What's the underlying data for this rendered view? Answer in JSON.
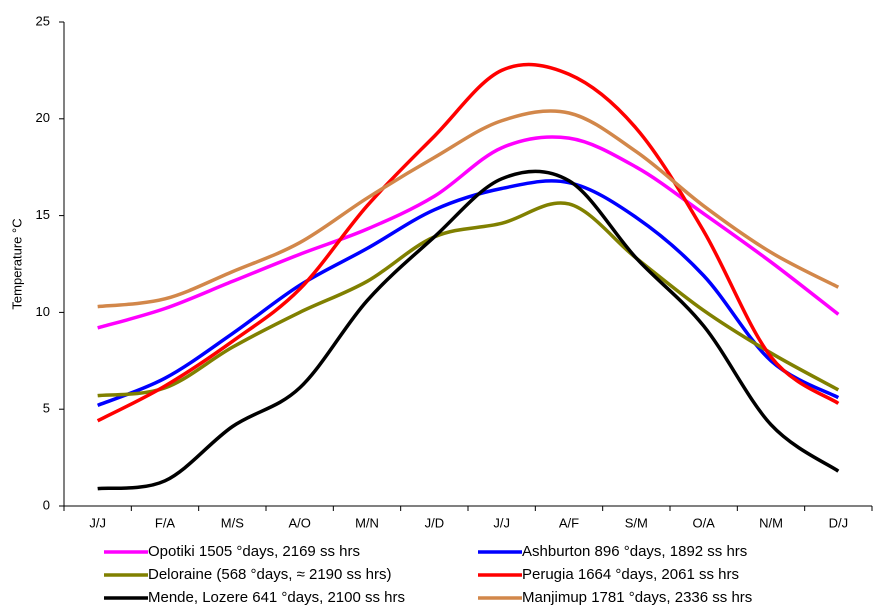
{
  "chart_data": {
    "type": "line",
    "y_label": "Temperature °C",
    "categories": [
      "J/J",
      "F/A",
      "M/S",
      "A/O",
      "M/N",
      "J/D",
      "J/J",
      "A/F",
      "S/M",
      "O/A",
      "N/M",
      "D/J"
    ],
    "ylim": [
      0,
      25
    ],
    "yticks": [
      0,
      5,
      10,
      15,
      20,
      25
    ],
    "series": [
      {
        "name": "Opotiki 1505 °days, 2169 ss hrs",
        "color": "#ff00ff",
        "values": [
          9.2,
          10.2,
          11.6,
          13.0,
          14.3,
          16.0,
          18.5,
          19.0,
          17.5,
          15.1,
          12.6,
          9.9
        ]
      },
      {
        "name": "Ashburton 896 °days, 1892 ss hrs",
        "color": "#0000ff",
        "values": [
          5.2,
          6.6,
          8.9,
          11.4,
          13.3,
          15.3,
          16.4,
          16.7,
          14.9,
          11.9,
          7.5,
          5.6
        ]
      },
      {
        "name": "Deloraine (568 °days, ≈ 2190 ss hrs)",
        "color": "#808000",
        "values": [
          5.7,
          6.1,
          8.2,
          10.0,
          11.6,
          13.9,
          14.6,
          15.6,
          12.8,
          10.1,
          7.9,
          6.0
        ]
      },
      {
        "name": "Perugia 1664 °days, 2061 ss hrs",
        "color": "#ff0000",
        "values": [
          4.4,
          6.2,
          8.5,
          11.2,
          15.5,
          19.1,
          22.5,
          22.3,
          19.5,
          14.2,
          7.7,
          5.3
        ]
      },
      {
        "name": "Mende, Lozere 641 °days, 2100 ss hrs",
        "color": "#000000",
        "values": [
          0.9,
          1.3,
          4.1,
          6.1,
          10.6,
          13.9,
          16.9,
          16.8,
          12.8,
          9.3,
          4.2,
          1.8
        ]
      },
      {
        "name": "Manjimup 1781 °days, 2336 ss hrs",
        "color": "#d2874a",
        "values": [
          10.3,
          10.7,
          12.1,
          13.6,
          15.9,
          18.0,
          19.9,
          20.3,
          18.3,
          15.5,
          13.1,
          11.3
        ]
      }
    ]
  }
}
